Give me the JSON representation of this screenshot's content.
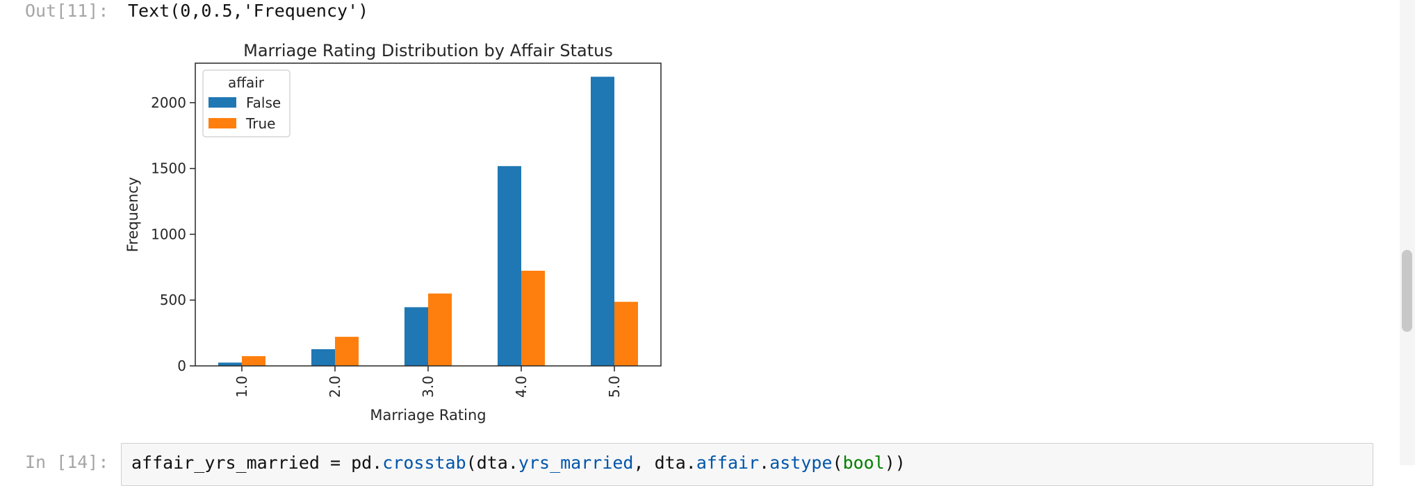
{
  "out_cell": {
    "prompt": "Out[11]:",
    "text": "Text(0,0.5,'Frequency')"
  },
  "in_cell": {
    "prompt": "In [14]:",
    "code": {
      "t1": "affair_yrs_married = pd.",
      "t2": "crosstab",
      "t3": "(dta.",
      "t4": "yrs_married",
      "t5": ", dta.",
      "t6": "affair",
      "t7": ".",
      "t8": "astype",
      "t9": "(",
      "t10": "bool",
      "t11": "))"
    }
  },
  "chart_data": {
    "type": "bar",
    "title": "Marriage Rating Distribution by Affair Status",
    "xlabel": "Marriage Rating",
    "ylabel": "Frequency",
    "categories": [
      "1.0",
      "2.0",
      "3.0",
      "4.0",
      "5.0"
    ],
    "ylim": [
      0,
      2300
    ],
    "yticks": [
      0,
      500,
      1000,
      1500,
      2000
    ],
    "legend": {
      "title": "affair",
      "placement": "top-left"
    },
    "series": [
      {
        "name": "False",
        "color": "#1f77b4",
        "values": [
          25,
          127,
          446,
          1518,
          2197
        ]
      },
      {
        "name": "True",
        "color": "#ff7f0e",
        "values": [
          74,
          221,
          550,
          723,
          487
        ]
      }
    ]
  },
  "colors": {
    "prompt": "#a5a5a5",
    "code_bg": "#f7f7f7"
  }
}
